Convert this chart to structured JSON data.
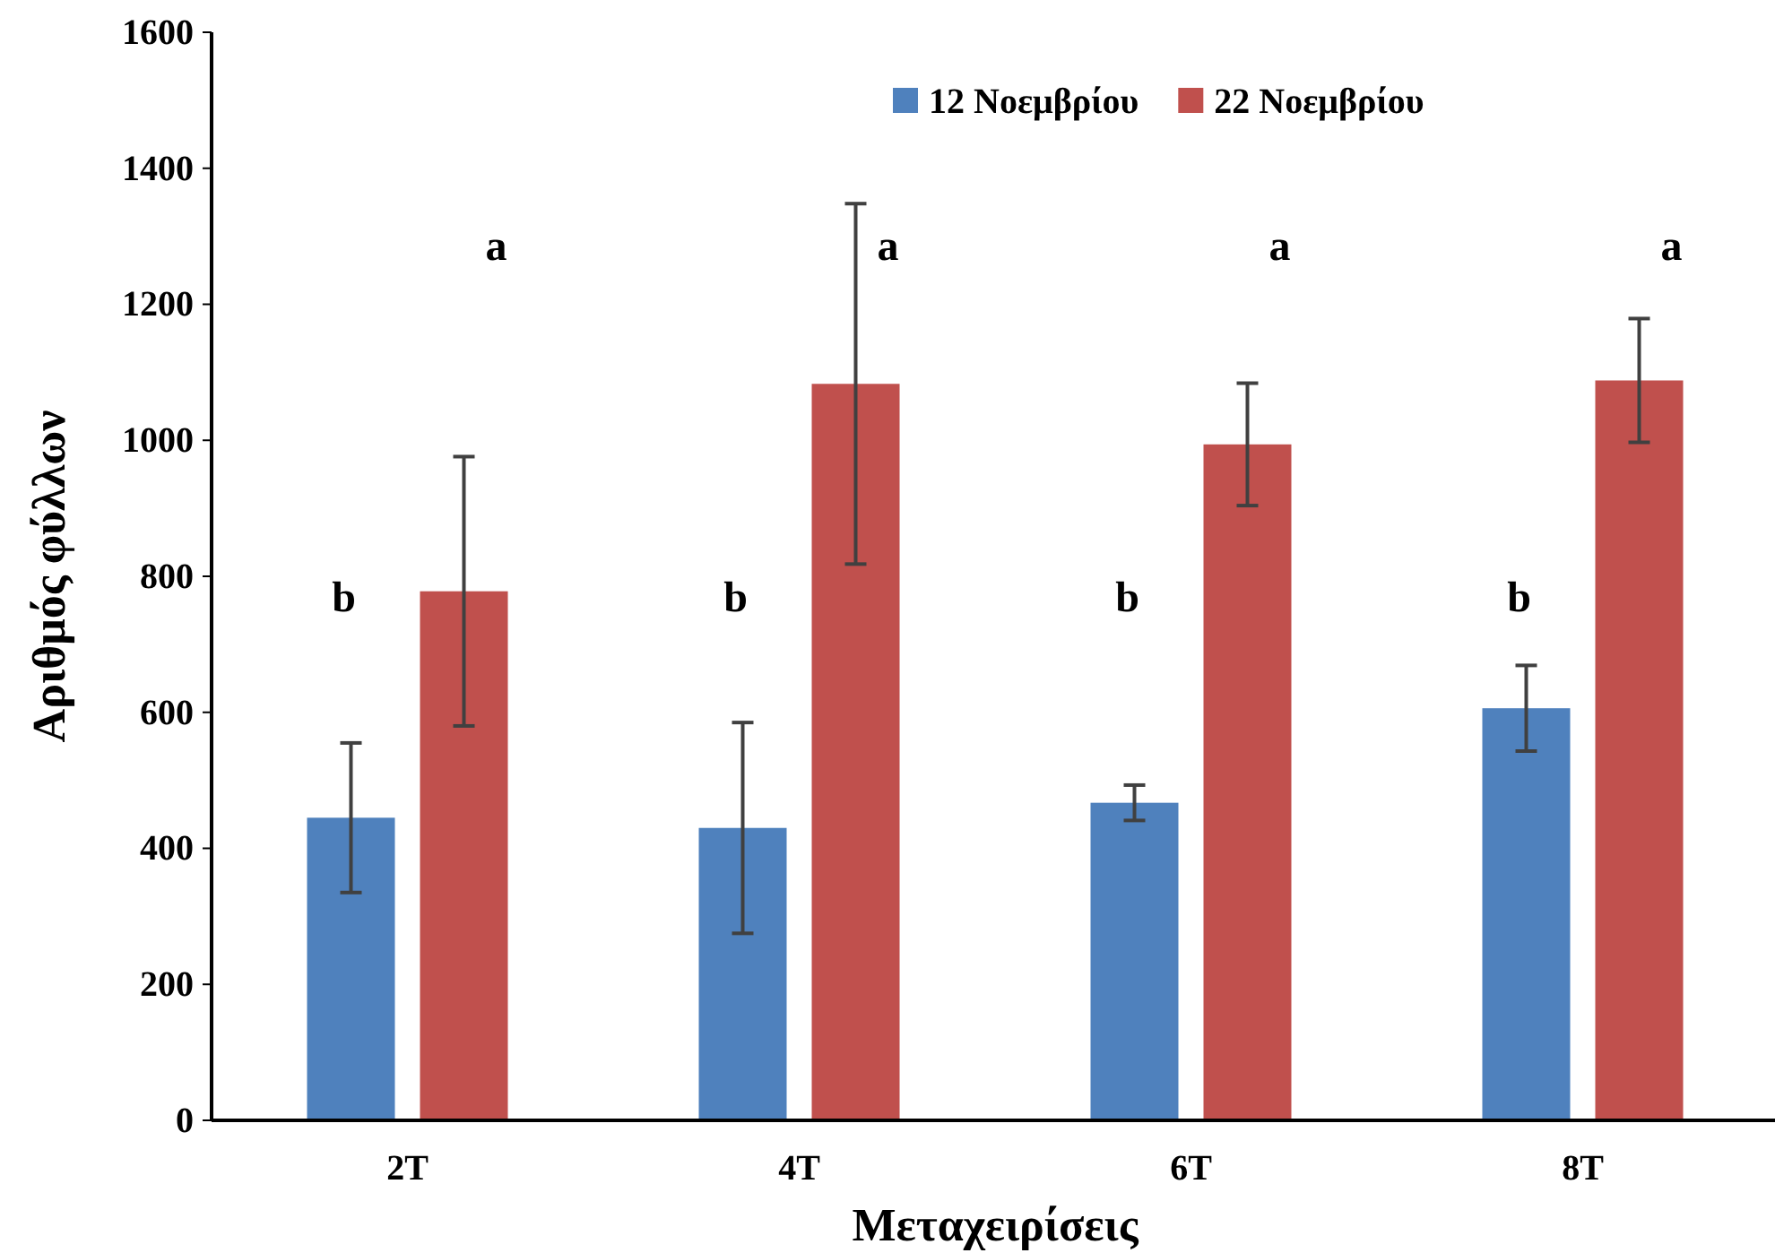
{
  "chart_data": {
    "type": "bar",
    "xlabel": "Μεταχειρίσεις",
    "ylabel": "Αριθμός φύλλων",
    "categories": [
      "2T",
      "4T",
      "6T",
      "8T"
    ],
    "series": [
      {
        "name": "12 Νοεμβρίου",
        "color": "#4f81bd",
        "values": [
          445,
          430,
          467,
          606
        ],
        "errors": [
          110,
          155,
          26,
          63
        ]
      },
      {
        "name": "22 Νοεμβρίου",
        "color": "#c0504d",
        "values": [
          778,
          1083,
          994,
          1088
        ],
        "errors": [
          198,
          265,
          90,
          91
        ]
      }
    ],
    "ylim": [
      0,
      1600
    ],
    "yticks": [
      0,
      200,
      400,
      600,
      800,
      1000,
      1200,
      1400,
      1600
    ],
    "grid": false,
    "legend": "top right",
    "annotations": [
      "b",
      "a",
      "b",
      "a",
      "b",
      "a",
      "b",
      "a"
    ]
  }
}
